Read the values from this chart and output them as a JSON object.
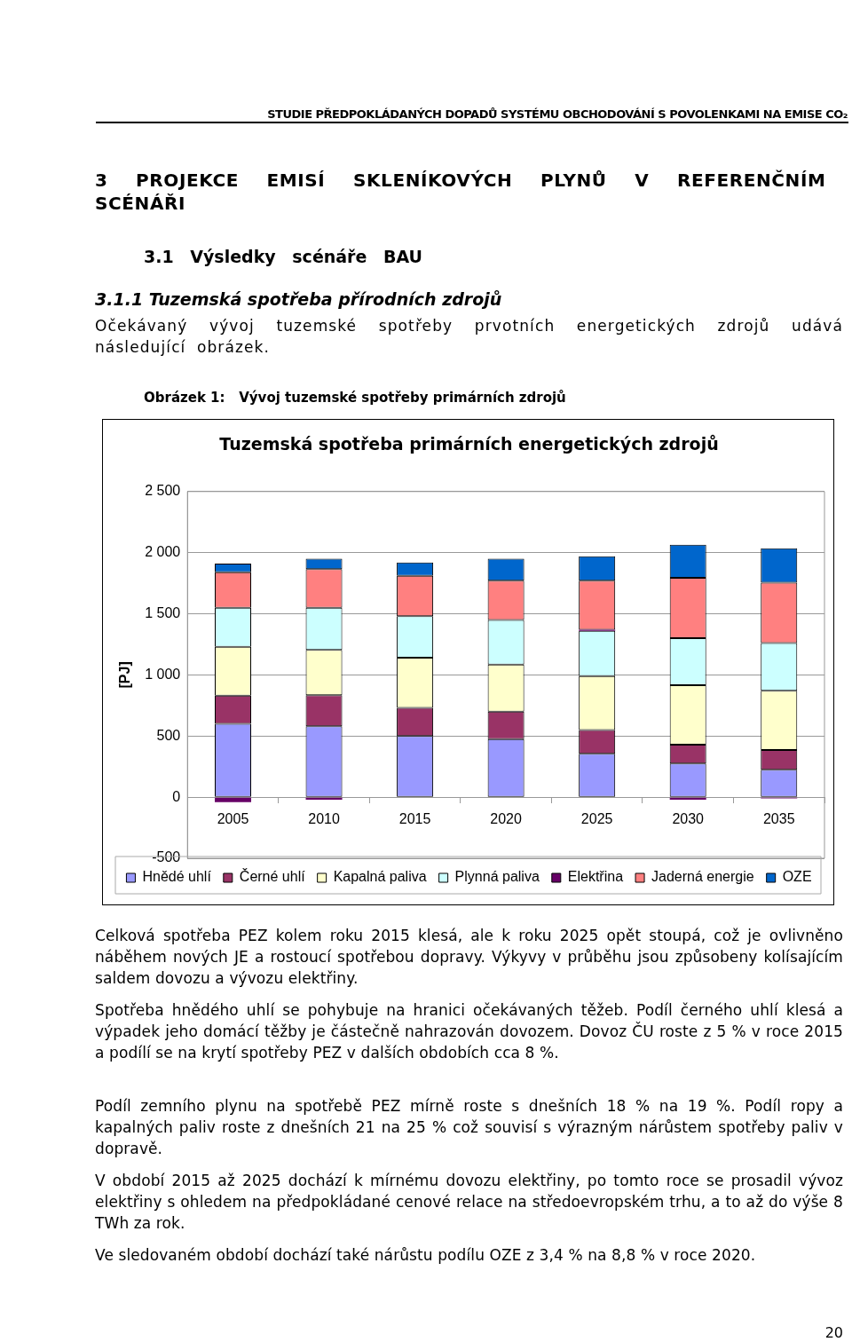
{
  "chart_data": {
    "type": "bar",
    "title": "Tuzemská spotřeba primárních energetických zdrojů",
    "ylabel": "[PJ]",
    "annotations": [
      "STUDIE PŘEDPOKLÁDANÝCH DOPADŮ SYSTÉMU OBCHODOVÁNÍ S POVOLENKAMI NA EMISE CO₂",
      "3 PROJEKCE EMISÍ SKLENÍKOVÝCH PLYNŮ V REFERENČNÍM SCÉNÁŘI",
      "3.1 Výsledky scénáře BAU",
      "3.1.1 Tuzemská spotřeba přírodních zdrojů",
      "Očekávaný vývoj tuzemské spotřeby prvotních energetických zdrojů udává následující obrázek.",
      "Obrázek 1:   Vývoj tuzemské spotřeby primárních zdrojů",
      "Celková spotřeba PEZ kolem roku 2015 klesá, ale k roku 2025 opět stoupá, což je ovlivněno náběhem nových JE a rostoucí spotřebou dopravy. Výkyvy v průběhu jsou způsobeny kolísajícím saldem dovozu a vývozu elektřiny.",
      "Spotřeba hnědého uhlí se pohybuje na hranici očekávaných těžeb. Podíl černého uhlí klesá a výpadek jeho domácí těžby je částečně nahrazován dovozem. Dovoz ČU roste z 5 % v roce 2015 a podílí se na krytí spotřeby PEZ v dalších obdobích cca 8 %.",
      "Podíl zemního plynu na spotřebě PEZ mírně roste s dnešních 18 % na 19 %. Podíl ropy a kapalných paliv roste z dnešních 21 na 25 % což souvisí s výrazným nárůstem spotřeby paliv v dopravě.",
      "V období 2015 až 2025 dochází k mírnému dovozu elektřiny, po tomto roce se prosadil vývoz elektřiny s ohledem na předpokládané cenové relace na středoevropském trhu, a to až do výše 8 TWh za rok.",
      "Ve sledovaném období dochází také nárůstu podílu OZE z 3,4 % na 8,8 % v roce 2020.",
      "20"
    ],
    "categories": [
      "2005",
      "2010",
      "2015",
      "2020",
      "2025",
      "2030",
      "2035"
    ],
    "stacked": true,
    "series": [
      {
        "name": "Hnědé uhlí",
        "color": "#9999ff",
        "values": [
          600,
          580,
          500,
          475,
          355,
          275,
          225
        ]
      },
      {
        "name": "Černé uhlí",
        "color": "#993366",
        "values": [
          230,
          255,
          230,
          225,
          195,
          155,
          160
        ]
      },
      {
        "name": "Kapalná paliva",
        "color": "#ffffcc",
        "values": [
          400,
          370,
          410,
          385,
          440,
          485,
          485
        ]
      },
      {
        "name": "Plynná paliva",
        "color": "#ccffff",
        "values": [
          320,
          345,
          340,
          365,
          370,
          385,
          390
        ]
      },
      {
        "name": "Elektřina",
        "color": "#660066",
        "values": [
          -40,
          -20,
          0,
          0,
          10,
          -20,
          -10
        ]
      },
      {
        "name": "Jaderná energie",
        "color": "#ff8080",
        "values": [
          290,
          315,
          330,
          320,
          400,
          495,
          495
        ]
      },
      {
        "name": "OZE",
        "color": "#0066cc",
        "values": [
          70,
          85,
          110,
          180,
          200,
          270,
          280
        ]
      }
    ],
    "ylim": [
      -500,
      2500
    ],
    "yticks": [
      {
        "value": -500,
        "label": "-500"
      },
      {
        "value": 0,
        "label": "0"
      },
      {
        "value": 500,
        "label": "500"
      },
      {
        "value": 1000,
        "label": "1 000"
      },
      {
        "value": 1500,
        "label": "1 500"
      },
      {
        "value": 2000,
        "label": "2 000"
      },
      {
        "value": 2500,
        "label": "2 500"
      }
    ],
    "grid": "y",
    "legend": "bottom"
  }
}
